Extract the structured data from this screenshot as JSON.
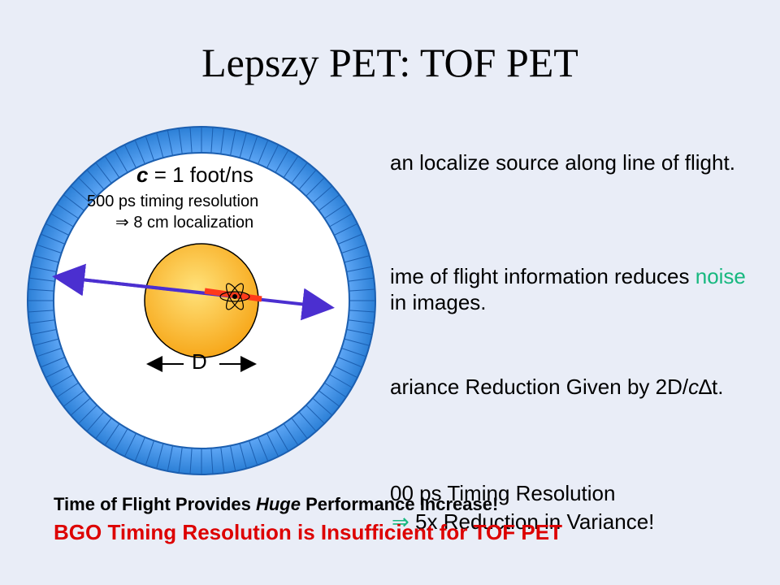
{
  "title": "Lepszy PET: TOF PET",
  "diagram": {
    "c_symbol": "c",
    "c_value": " = 1 foot/ns",
    "timing_text": "500 ps timing resolution",
    "implies_glyph": "⇒",
    "localization_text": " 8 cm localization",
    "d_label": "D",
    "colors": {
      "ring": "#2b7fd6",
      "ring_inner": "#ffffff",
      "patient": "#f7b52b",
      "line_of_flight": "#4b2fd0",
      "source_segment": "#ff3a1a"
    }
  },
  "bullets": {
    "b1": "an localize source along line of flight.",
    "b2_part1": "ime of flight information reduces ",
    "b2_noise": "noise",
    "b2_part2": " in images.",
    "b3_part1": "ariance Reduction Given by 2D/",
    "b3_c": "c",
    "b3_part2": "∆t.",
    "b4": "00 ps Timing Resolution",
    "b5_arrow": "⇒",
    "b5": " 5x Reduction in Variance!"
  },
  "footer": {
    "line1_part1": "Time of Flight Provides ",
    "line1_huge": "Huge",
    "line1_part2": " Performance Increase!",
    "line2": "BGO Timing Resolution is Insufficient for TOF PET"
  }
}
